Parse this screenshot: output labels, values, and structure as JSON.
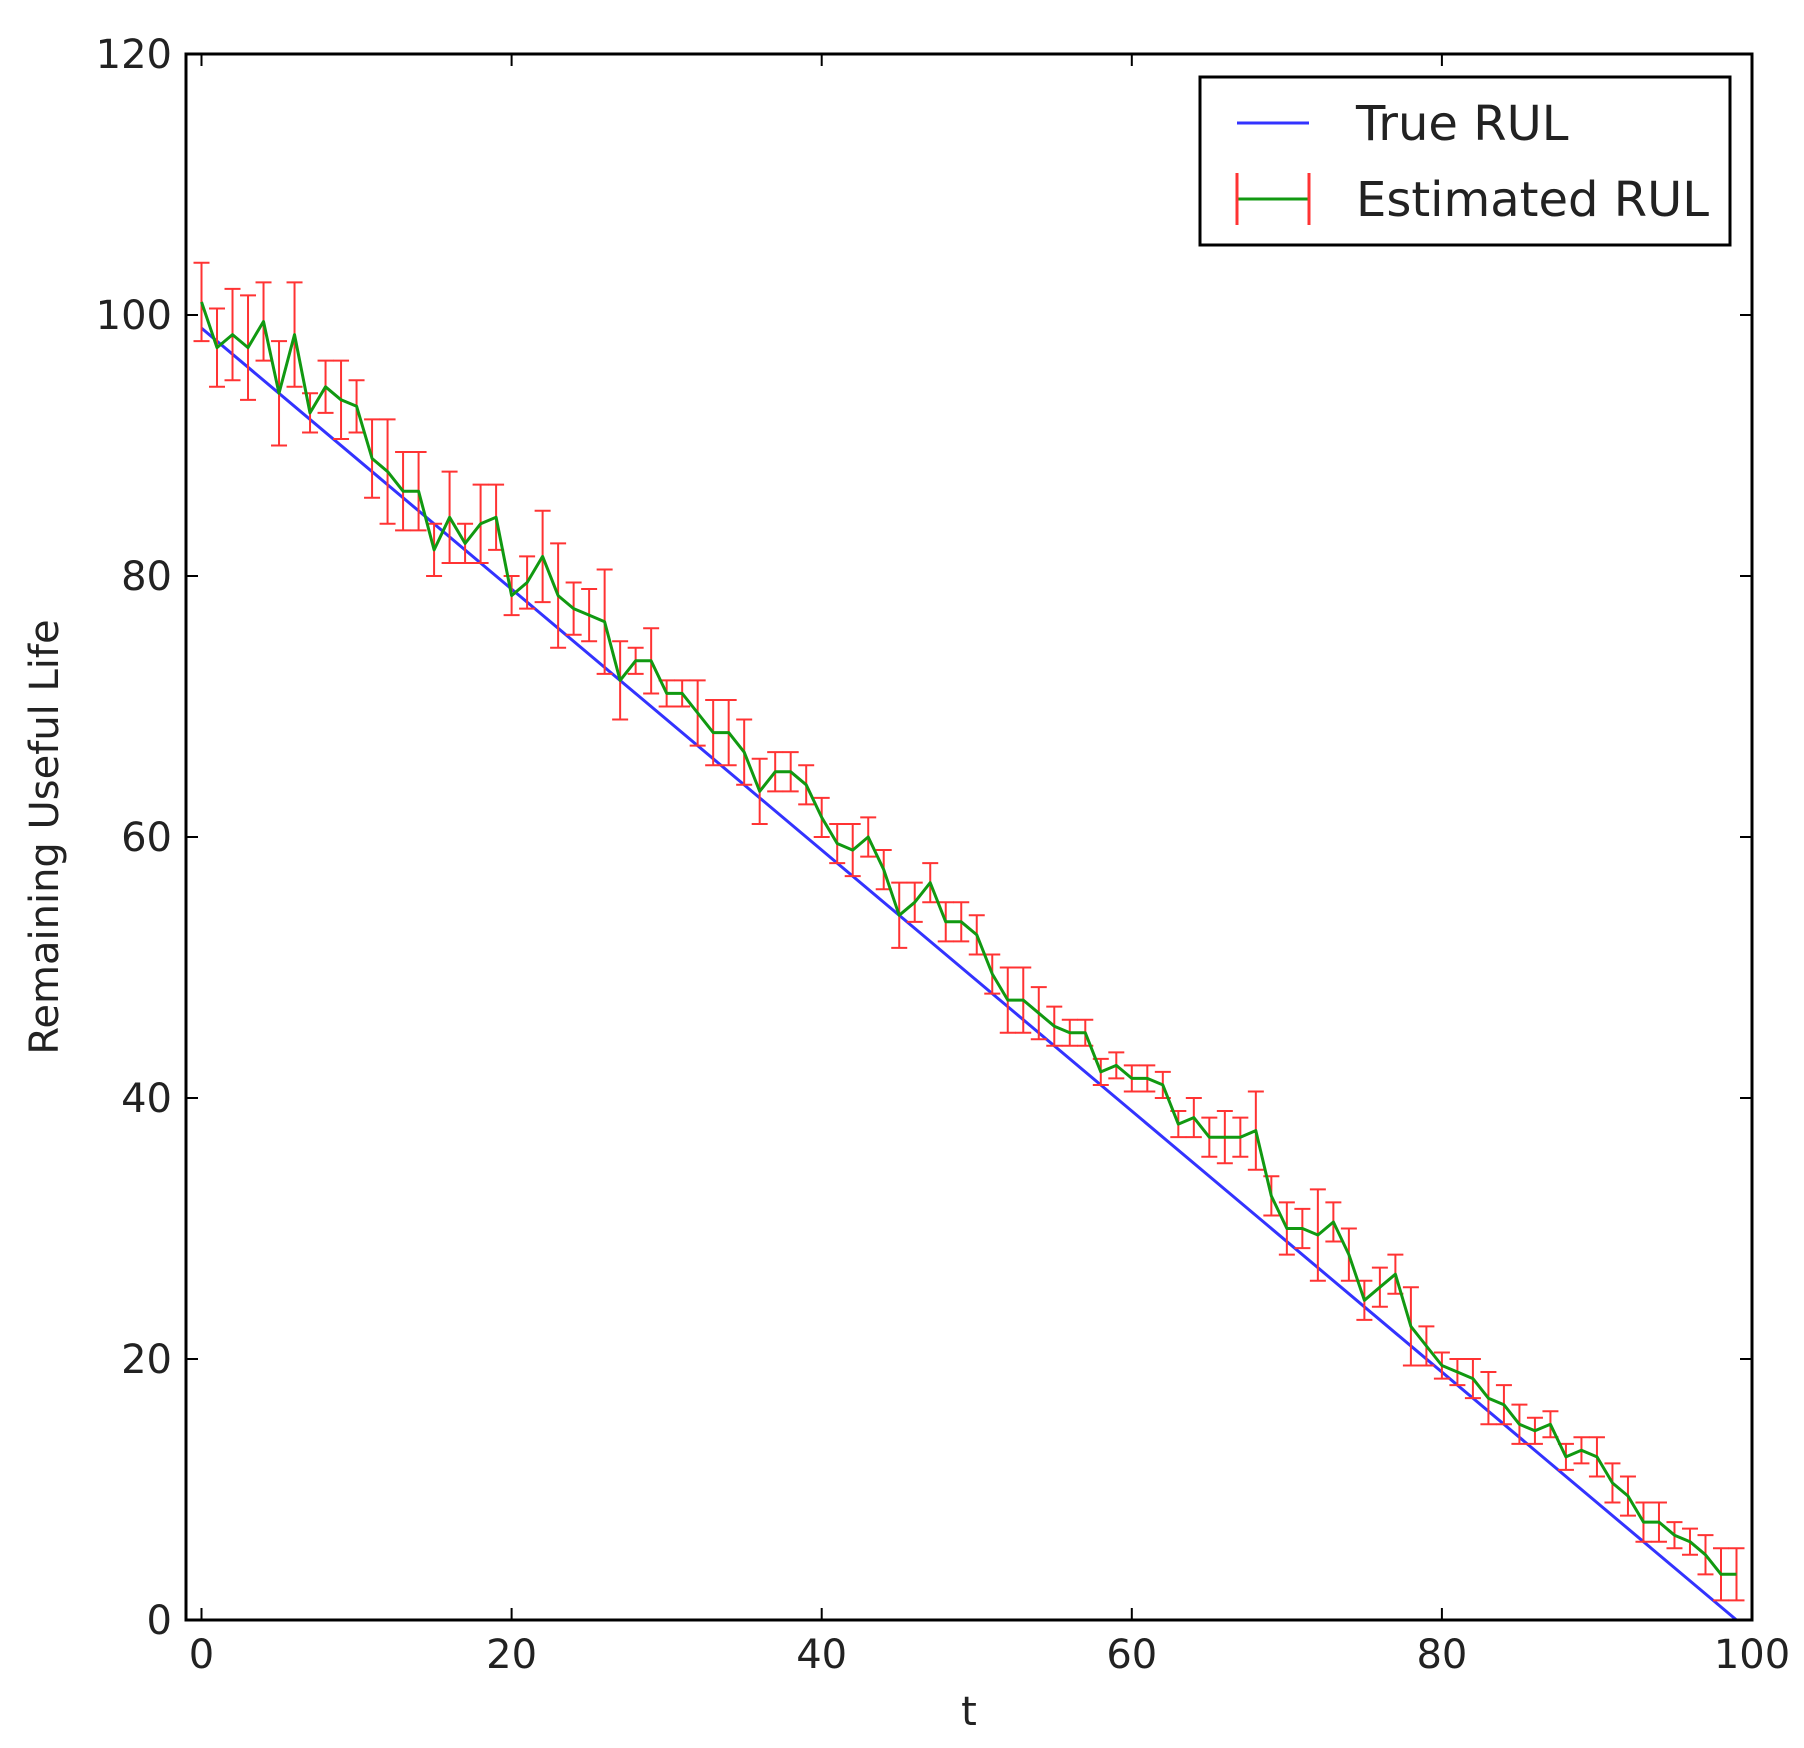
{
  "chart_data": {
    "type": "line",
    "title": "",
    "xlabel": "t",
    "ylabel": "Remaining Useful Life",
    "xlim": [
      -1,
      100
    ],
    "ylim": [
      0,
      120
    ],
    "xticks": [
      0,
      20,
      40,
      60,
      80,
      100
    ],
    "yticks": [
      0,
      20,
      40,
      60,
      80,
      100,
      120
    ],
    "grid": false,
    "legend_position": "top-right",
    "series": [
      {
        "name": "True RUL",
        "color": "#3333ff",
        "style": "line",
        "x": [
          0,
          99
        ],
        "y": [
          99,
          0
        ]
      },
      {
        "name": "Estimated RUL",
        "color": "#119911",
        "errorbar_color": "#ff3333",
        "style": "line-errorbar",
        "x": [
          0,
          1,
          2,
          3,
          4,
          5,
          6,
          7,
          8,
          9,
          10,
          11,
          12,
          13,
          14,
          15,
          16,
          17,
          18,
          19,
          20,
          21,
          22,
          23,
          24,
          25,
          26,
          27,
          28,
          29,
          30,
          31,
          32,
          33,
          34,
          35,
          36,
          37,
          38,
          39,
          40,
          41,
          42,
          43,
          44,
          45,
          46,
          47,
          48,
          49,
          50,
          51,
          52,
          53,
          54,
          55,
          56,
          57,
          58,
          59,
          60,
          61,
          62,
          63,
          64,
          65,
          66,
          67,
          68,
          69,
          70,
          71,
          72,
          73,
          74,
          75,
          76,
          77,
          78,
          79,
          80,
          81,
          82,
          83,
          84,
          85,
          86,
          87,
          88,
          89,
          90,
          91,
          92,
          93,
          94,
          95,
          96,
          97,
          98,
          99
        ],
        "y": [
          101,
          97.5,
          98.5,
          97.5,
          99.5,
          94,
          98.5,
          92.5,
          94.5,
          93.5,
          93,
          89,
          88,
          86.5,
          86.5,
          82,
          84.5,
          82.5,
          84,
          84.5,
          78.5,
          79.5,
          81.5,
          78.5,
          77.5,
          77,
          76.5,
          72,
          73.5,
          73.5,
          71,
          71,
          69.5,
          68,
          68,
          66.5,
          63.5,
          65,
          65,
          64,
          61.5,
          59.5,
          59,
          60,
          57.5,
          54,
          55,
          56.5,
          53.5,
          53.5,
          52.5,
          49.5,
          47.5,
          47.5,
          46.5,
          45.5,
          45,
          45,
          42,
          42.5,
          41.5,
          41.5,
          41,
          38,
          38.5,
          37,
          37,
          37,
          37.5,
          32.5,
          30,
          30,
          29.5,
          30.5,
          28,
          24.5,
          25.5,
          26.5,
          22.5,
          21,
          19.5,
          19,
          18.5,
          17,
          16.5,
          15,
          14.5,
          15,
          12.5,
          13,
          12.5,
          10.5,
          9.5,
          7.5,
          7.5,
          6.5,
          6,
          5,
          3.5,
          3.5
        ],
        "err": [
          3,
          3,
          3.5,
          4,
          3,
          4,
          4,
          1.5,
          2,
          3,
          2,
          3,
          4,
          3,
          3,
          2,
          3.5,
          1.5,
          3,
          2.5,
          1.5,
          2,
          3.5,
          4,
          2,
          2,
          4,
          3,
          1,
          2.5,
          1,
          1,
          2.5,
          2.5,
          2.5,
          2.5,
          2.5,
          1.5,
          1.5,
          1.5,
          1.5,
          1.5,
          2,
          1.5,
          1.5,
          2.5,
          1.5,
          1.5,
          1.5,
          1.5,
          1.5,
          1.5,
          2.5,
          2.5,
          2,
          1.5,
          1,
          1,
          1,
          1,
          1,
          1,
          1,
          1,
          1.5,
          1.5,
          2,
          1.5,
          3,
          1.5,
          2,
          1.5,
          3.5,
          1.5,
          2,
          1.5,
          1.5,
          1.5,
          3,
          1.5,
          1,
          1,
          1.5,
          2,
          1.5,
          1.5,
          1,
          1,
          1,
          1,
          1.5,
          1.5,
          1.5,
          1.5,
          1.5,
          1,
          1,
          1.5,
          2,
          2
        ]
      }
    ]
  }
}
